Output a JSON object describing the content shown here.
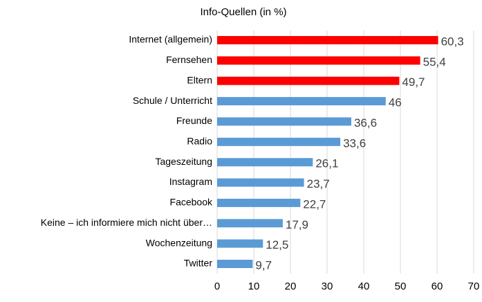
{
  "chart_data": {
    "type": "bar",
    "orientation": "horizontal",
    "title": "Info-Quellen (in %)",
    "categories": [
      "Internet (allgemein)",
      "Fernsehen",
      "Eltern",
      "Schule / Unterricht",
      "Freunde",
      "Radio",
      "Tageszeitung",
      "Instagram",
      "Facebook",
      "Keine – ich informiere mich nicht über…",
      "Wochenzeitung",
      "Twitter"
    ],
    "values": [
      60.3,
      55.4,
      49.7,
      46,
      36.6,
      33.6,
      26.1,
      23.7,
      22.7,
      17.9,
      12.5,
      9.7
    ],
    "value_labels": [
      "60,3",
      "55,4",
      "49,7",
      "46",
      "36,6",
      "33,6",
      "26,1",
      "23,7",
      "22,7",
      "17,9",
      "12,5",
      "9,7"
    ],
    "colors": [
      "#ff0000",
      "#ff0000",
      "#ff0000",
      "#5b9bd5",
      "#5b9bd5",
      "#5b9bd5",
      "#5b9bd5",
      "#5b9bd5",
      "#5b9bd5",
      "#5b9bd5",
      "#5b9bd5",
      "#5b9bd5"
    ],
    "xlim": [
      0,
      70
    ],
    "xticks": [
      0,
      10,
      20,
      30,
      40,
      50,
      60,
      70
    ],
    "grid": true
  }
}
